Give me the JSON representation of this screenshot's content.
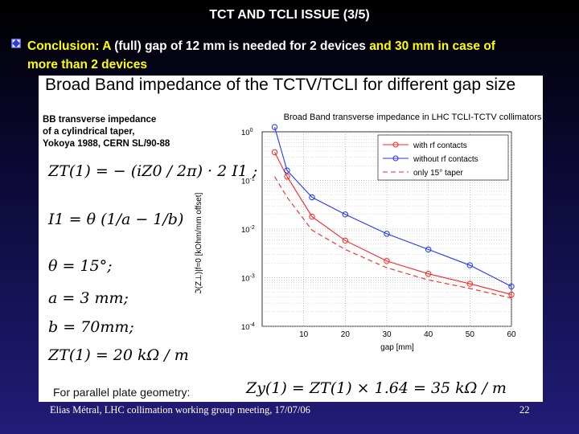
{
  "slide": {
    "title": "TCT AND TCLI ISSUE (3/5)",
    "conclusion": {
      "part1": "Conclusion: A",
      "part2": " (full) gap of 12 mm is needed for 2 devices ",
      "part3": "and 30 mm in case of",
      "part4": "more than 2 devices"
    },
    "footer": "Elias Métral, LHC collimation working group meeting, 17/07/06",
    "page_number": "22"
  },
  "figure": {
    "heading": "Broad Band impedance of the TCTV/TCLI for different gap size",
    "bb_text": [
      "BB transverse impedance",
      "of a cylindrical taper,",
      "Yokoya 1988, CERN SL/90-88"
    ],
    "equations": {
      "eq1": "ZT(1) = − (iZ0 / 2π) · 2 I1 ;",
      "eq2": "I1 = θ (1/a − 1/b)",
      "eq3": "θ = 15°;",
      "eq4": "a = 3 mm;",
      "eq5": "b = 70mm;",
      "eq6": "ZT(1) = 20 kΩ / m"
    },
    "parallel_label": "For parallel plate geometry:",
    "parallel_eq": "Zy(1) = ZT(1) × 1.64 = 35 kΩ / m"
  },
  "chart_data": {
    "type": "line",
    "title": "Broad Band transverse impedance in LHC TCLI-TCTV collimators",
    "xlabel": "gap [mm]",
    "ylabel": "ℑ(Z⊥)|f=0 [kOhm/mm offset]",
    "yscale": "log",
    "xlim": [
      0,
      60
    ],
    "ylim": [
      0.0001,
      1
    ],
    "xticks": [
      "10",
      "20",
      "30",
      "40",
      "50",
      "60"
    ],
    "yticks": [
      "10^0",
      "10^-1",
      "10^-2",
      "10^-3",
      "10^-4"
    ],
    "grid": true,
    "legend_position": "top-right",
    "series": [
      {
        "name": "with rf contacts",
        "color": "#ff2222",
        "style": "solid-circle",
        "x": [
          3,
          6,
          12,
          20,
          30,
          40,
          50,
          60
        ],
        "y": [
          0.38,
          0.12,
          0.018,
          0.0058,
          0.0022,
          0.0012,
          0.00075,
          0.00045
        ]
      },
      {
        "name": "without rf contacts",
        "color": "#2233ff",
        "style": "solid-circle",
        "x": [
          3,
          6,
          12,
          20,
          30,
          40,
          50,
          60
        ],
        "y": [
          1.25,
          0.16,
          0.045,
          0.02,
          0.008,
          0.0038,
          0.0018,
          0.00066
        ]
      },
      {
        "name": "only 15° taper",
        "color": "#ff2222",
        "style": "dashed",
        "x": [
          3,
          6,
          12,
          20,
          30,
          40,
          50,
          60
        ],
        "y": [
          0.12,
          0.045,
          0.0095,
          0.0038,
          0.0016,
          0.0009,
          0.0006,
          0.00038
        ]
      }
    ]
  },
  "colors": {
    "highlight": "#ffff00",
    "red": "#ff2222",
    "blue": "#2233ff"
  }
}
